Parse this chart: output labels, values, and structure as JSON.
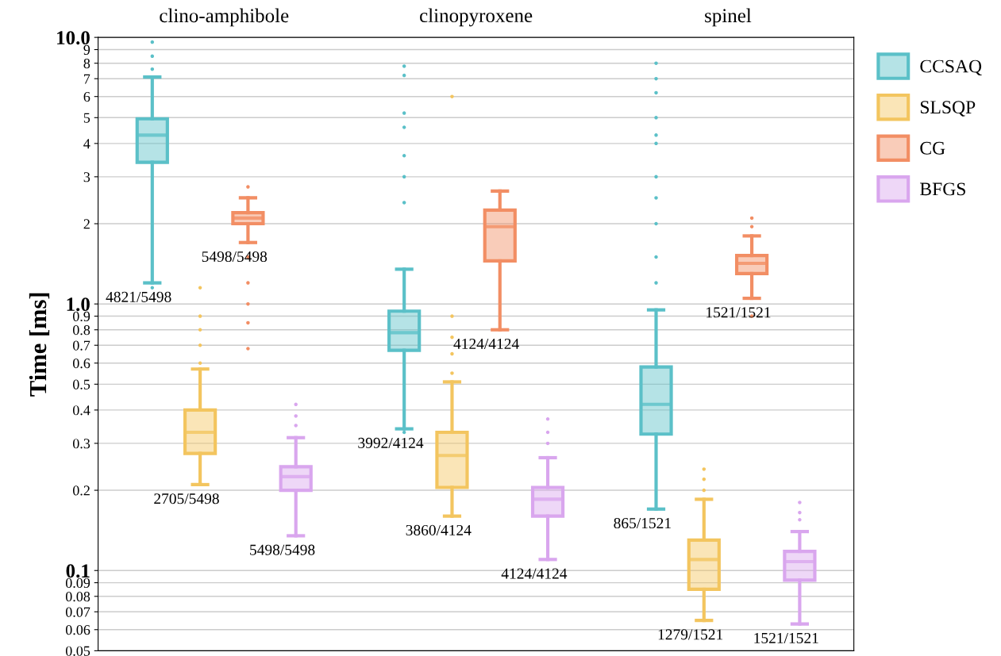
{
  "chart_data": {
    "type": "box",
    "ylabel": "Time [ms]",
    "categories": [
      "clino-amphibole",
      "clinopyroxene",
      "spinel"
    ],
    "log": true,
    "ylim": [
      0.05,
      10
    ],
    "grid": "y",
    "legend": "top right",
    "yticks": [
      0.05,
      0.06,
      0.07,
      0.08,
      0.09,
      0.1,
      0.2,
      0.3,
      0.4,
      0.5,
      0.6,
      0.7,
      0.8,
      0.9,
      {
        "value": 1,
        "label": "1.0"
      },
      2,
      3,
      4,
      5,
      6,
      7,
      8,
      9,
      {
        "value": 10,
        "label": "10.0"
      }
    ],
    "series": [
      {
        "name": "CCSAQ",
        "color": "#5bc0c8",
        "boxes": [
          {
            "low": 1.2,
            "q1": 3.4,
            "median": 4.3,
            "q3": 4.95,
            "high": 7.1,
            "outliers": [
              9.6,
              8.5,
              7.6,
              1.15
            ]
          },
          {
            "low": 0.34,
            "q1": 0.67,
            "median": 0.78,
            "q3": 0.94,
            "high": 1.35,
            "outliers": [
              7.8,
              7.2,
              5.2,
              4.6,
              3.6,
              3.0,
              2.4,
              0.33
            ]
          },
          {
            "low": 0.17,
            "q1": 0.325,
            "median": 0.42,
            "q3": 0.58,
            "high": 0.95,
            "outliers": [
              8.0,
              7.0,
              6.2,
              5.0,
              4.3,
              4.0,
              3.0,
              2.5,
              2.0,
              1.5,
              1.2
            ]
          }
        ]
      },
      {
        "name": "SLSQP",
        "color": "#f3c55f",
        "boxes": [
          {
            "low": 0.21,
            "q1": 0.275,
            "median": 0.33,
            "q3": 0.4,
            "high": 0.57,
            "outliers": [
              1.15,
              0.9,
              0.8,
              0.7,
              0.6
            ]
          },
          {
            "low": 0.16,
            "q1": 0.205,
            "median": 0.27,
            "q3": 0.33,
            "high": 0.51,
            "outliers": [
              6.0,
              0.9,
              0.75,
              0.65,
              0.55
            ]
          },
          {
            "low": 0.065,
            "q1": 0.085,
            "median": 0.11,
            "q3": 0.13,
            "high": 0.185,
            "outliers": [
              0.24,
              0.22,
              0.2
            ]
          }
        ]
      },
      {
        "name": "CG",
        "color": "#f28e64",
        "boxes": [
          {
            "low": 1.7,
            "q1": 2.0,
            "median": 2.1,
            "q3": 2.2,
            "high": 2.5,
            "outliers": [
              2.75,
              1.5,
              1.2,
              1.0,
              0.85,
              0.68
            ]
          },
          {
            "low": 0.8,
            "q1": 1.45,
            "median": 1.95,
            "q3": 2.25,
            "high": 2.65
          },
          {
            "low": 1.05,
            "q1": 1.3,
            "median": 1.42,
            "q3": 1.52,
            "high": 1.8,
            "outliers": [
              2.1,
              1.95,
              0.9
            ]
          }
        ]
      },
      {
        "name": "BFGS",
        "color": "#d9a6ee",
        "boxes": [
          {
            "low": 0.135,
            "q1": 0.2,
            "median": 0.225,
            "q3": 0.245,
            "high": 0.315,
            "outliers": [
              0.42,
              0.38,
              0.35
            ]
          },
          {
            "low": 0.11,
            "q1": 0.16,
            "median": 0.185,
            "q3": 0.205,
            "high": 0.265,
            "outliers": [
              0.37,
              0.33,
              0.3
            ]
          },
          {
            "low": 0.063,
            "q1": 0.092,
            "median": 0.108,
            "q3": 0.118,
            "high": 0.14,
            "outliers": [
              0.18,
              0.165,
              0.155
            ]
          }
        ]
      }
    ],
    "annotations": [
      "4821/5498",
      "2705/5498",
      "5498/5498",
      "5498/5498",
      "3992/4124",
      "3860/4124",
      "4124/4124",
      "4124/4124",
      "865/1521",
      "1279/1521",
      "1521/1521",
      "1521/1521"
    ]
  }
}
